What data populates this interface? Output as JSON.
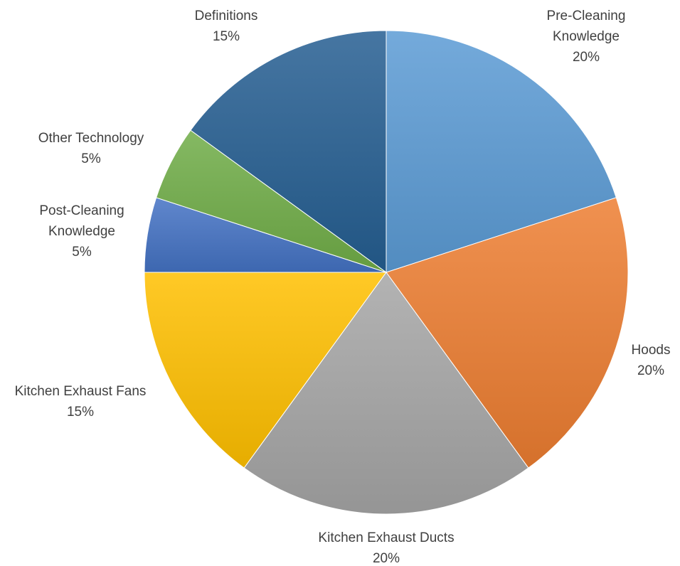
{
  "chart_data": {
    "type": "pie",
    "title": "",
    "start_angle_deg": 0,
    "direction": "clockwise",
    "label_format": "category-and-percent",
    "slices": [
      {
        "category": "Pre-Cleaning Knowledge",
        "label_lines": [
          "Pre-Cleaning",
          "Knowledge"
        ],
        "value": 20,
        "percent_label": "20%",
        "color": "#5B9BD5"
      },
      {
        "category": "Hoods",
        "label_lines": [
          "Hoods"
        ],
        "value": 20,
        "percent_label": "20%",
        "color": "#ED7D31"
      },
      {
        "category": "Kitchen Exhaust Ducts",
        "label_lines": [
          "Kitchen Exhaust Ducts"
        ],
        "value": 20,
        "percent_label": "20%",
        "color": "#A5A5A5"
      },
      {
        "category": "Kitchen Exhaust Fans",
        "label_lines": [
          "Kitchen Exhaust Fans"
        ],
        "value": 15,
        "percent_label": "15%",
        "color": "#FFC000"
      },
      {
        "category": "Post-Cleaning Knowledge",
        "label_lines": [
          "Post-Cleaning",
          "Knowledge"
        ],
        "value": 5,
        "percent_label": "5%",
        "color": "#4472C4"
      },
      {
        "category": "Other Technology",
        "label_lines": [
          "Other Technology"
        ],
        "value": 5,
        "percent_label": "5%",
        "color": "#70AD47"
      },
      {
        "category": "Definitions",
        "label_lines": [
          "Definitions"
        ],
        "value": 15,
        "percent_label": "15%",
        "color": "#255E91"
      }
    ]
  }
}
